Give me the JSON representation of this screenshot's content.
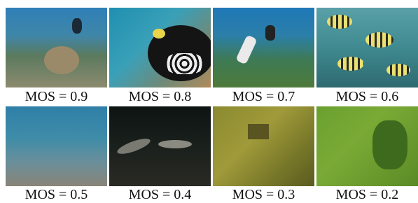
{
  "panels": [
    {
      "label": "MOS = 0.9"
    },
    {
      "label": "MOS = 0.8"
    },
    {
      "label": "MOS = 0.7"
    },
    {
      "label": "MOS = 0.6"
    },
    {
      "label": "MOS = 0.5"
    },
    {
      "label": "MOS = 0.4"
    },
    {
      "label": "MOS = 0.3"
    },
    {
      "label": "MOS = 0.2"
    }
  ]
}
